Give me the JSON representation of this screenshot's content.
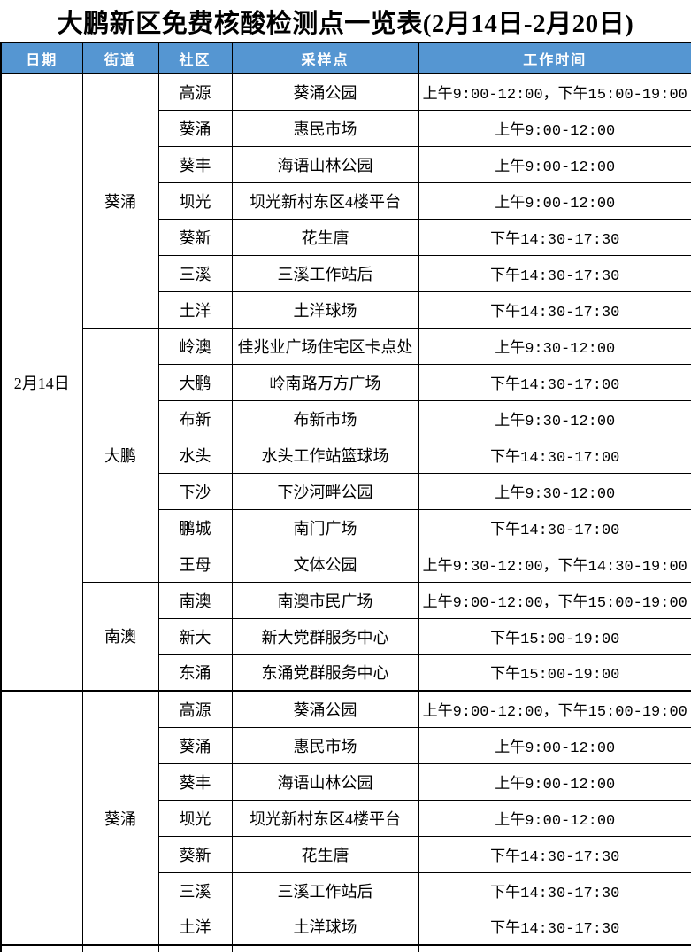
{
  "title": "大鹏新区免费核酸检测点一览表(2月14日-2月20日)",
  "colors": {
    "header_bg": "#5596D2",
    "header_text": "#FFFFFF",
    "border": "#000000",
    "text": "#000000"
  },
  "table": {
    "headers": [
      "日期",
      "街道",
      "社区",
      "采样点",
      "工作时间"
    ],
    "blocks": [
      {
        "date": "2月14日",
        "streets": [
          {
            "name": "葵涌",
            "rows": [
              {
                "community": "高源",
                "site": "葵涌公园",
                "hours": "上午9:00-12:00，下午15:00-19:00"
              },
              {
                "community": "葵涌",
                "site": "惠民市场",
                "hours": "上午9:00-12:00"
              },
              {
                "community": "葵丰",
                "site": "海语山林公园",
                "hours": "上午9:00-12:00"
              },
              {
                "community": "坝光",
                "site": "坝光新村东区4楼平台",
                "hours": "上午9:00-12:00"
              },
              {
                "community": "葵新",
                "site": "花生唐",
                "hours": "下午14:30-17:30"
              },
              {
                "community": "三溪",
                "site": "三溪工作站后",
                "hours": "下午14:30-17:30"
              },
              {
                "community": "土洋",
                "site": "土洋球场",
                "hours": "下午14:30-17:30"
              }
            ]
          },
          {
            "name": "大鹏",
            "rows": [
              {
                "community": "岭澳",
                "site": "佳兆业广场住宅区卡点处",
                "hours": "上午9:30-12:00"
              },
              {
                "community": "大鹏",
                "site": "岭南路万方广场",
                "hours": "下午14:30-17:00"
              },
              {
                "community": "布新",
                "site": "布新市场",
                "hours": "上午9:30-12:00"
              },
              {
                "community": "水头",
                "site": "水头工作站篮球场",
                "hours": "下午14:30-17:00"
              },
              {
                "community": "下沙",
                "site": "下沙河畔公园",
                "hours": "上午9:30-12:00"
              },
              {
                "community": "鹏城",
                "site": "南门广场",
                "hours": "下午14:30-17:00"
              },
              {
                "community": "王母",
                "site": "文体公园",
                "hours": "上午9:30-12:00，下午14:30-19:00"
              }
            ]
          },
          {
            "name": "南澳",
            "rows": [
              {
                "community": "南澳",
                "site": "南澳市民广场",
                "hours": "上午9:00-12:00，下午15:00-19:00"
              },
              {
                "community": "新大",
                "site": "新大党群服务中心",
                "hours": "下午15:00-19:00"
              },
              {
                "community": "东涌",
                "site": "东涌党群服务中心",
                "hours": "下午15:00-19:00"
              }
            ]
          }
        ]
      },
      {
        "date": "",
        "streets": [
          {
            "name": "葵涌",
            "rows": [
              {
                "community": "高源",
                "site": "葵涌公园",
                "hours": "上午9:00-12:00，下午15:00-19:00"
              },
              {
                "community": "葵涌",
                "site": "惠民市场",
                "hours": "上午9:00-12:00"
              },
              {
                "community": "葵丰",
                "site": "海语山林公园",
                "hours": "上午9:00-12:00"
              },
              {
                "community": "坝光",
                "site": "坝光新村东区4楼平台",
                "hours": "上午9:00-12:00"
              },
              {
                "community": "葵新",
                "site": "花生唐",
                "hours": "下午14:30-17:30"
              },
              {
                "community": "三溪",
                "site": "三溪工作站后",
                "hours": "下午14:30-17:30"
              },
              {
                "community": "土洋",
                "site": "土洋球场",
                "hours": "下午14:30-17:30"
              }
            ]
          }
        ]
      }
    ]
  }
}
